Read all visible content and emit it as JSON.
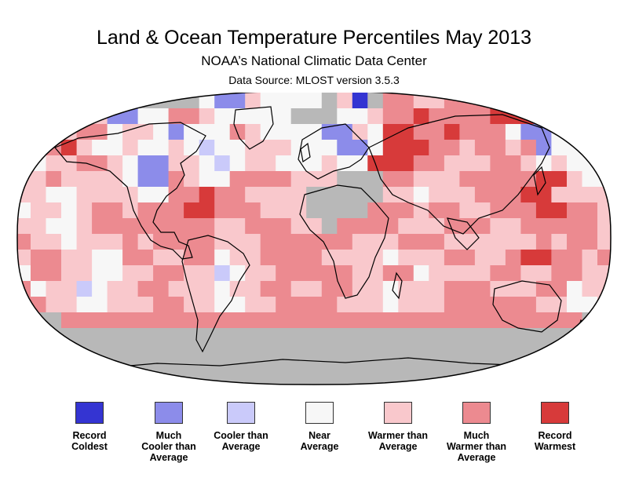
{
  "header": {
    "title": "Land & Ocean Temperature Percentiles May 2013",
    "subtitle": "NOAA’s National Climatic Data Center",
    "source": "Data Source: MLOST version 3.5.3"
  },
  "map": {
    "projection": "robinson",
    "colors": {
      "record_coldest": "#3434d2",
      "much_cooler": "#8c8cea",
      "cooler": "#cacafa",
      "near": "#f7f7f7",
      "warmer": "#f9c8cc",
      "much_warmer": "#ec8a90",
      "record_warmest": "#d73a3a",
      "no_data": "#b8b8b8",
      "coastline": "#000000"
    }
  },
  "legend": {
    "items": [
      {
        "label": "Record\nColdest",
        "color": "#3434d2"
      },
      {
        "label": "Much\nCooler than\nAverage",
        "color": "#8c8cea"
      },
      {
        "label": "Cooler than\nAverage",
        "color": "#cacafa"
      },
      {
        "label": "Near\nAverage",
        "color": "#f7f7f7"
      },
      {
        "label": "Warmer than\nAverage",
        "color": "#f9c8cc"
      },
      {
        "label": "Much\nWarmer than\nAverage",
        "color": "#ec8a90"
      },
      {
        "label": "Record\nWarmest",
        "color": "#d73a3a"
      }
    ]
  }
}
